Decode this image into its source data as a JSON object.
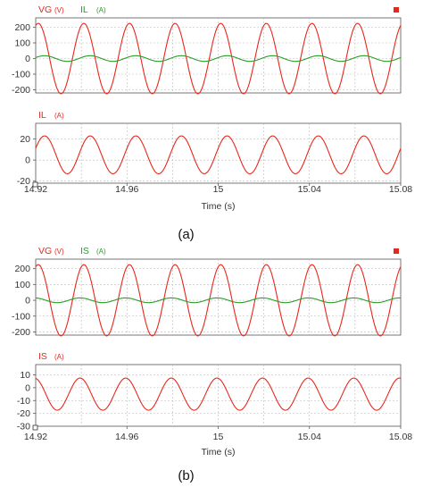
{
  "chart_data": [
    {
      "type": "line",
      "panel_caption": "(a)",
      "time_range": [
        14.92,
        15.08
      ],
      "x_ticks": [
        "14.92",
        "14.96",
        "15",
        "15.04",
        "15.08"
      ],
      "xlabel": "Time (s)",
      "accent_color": "#e8271c",
      "subplots": [
        {
          "legend": [
            {
              "name": "VG",
              "unit": "(V)",
              "color": "#e8271c"
            },
            {
              "name": "IL",
              "unit": "(A)",
              "color": "#2a9d2a"
            }
          ],
          "ylim": [
            -220,
            260
          ],
          "y_ticks": [
            200,
            100,
            0,
            -100,
            -200
          ],
          "series": [
            {
              "name": "VG",
              "color": "#e8271c",
              "waveform": "sine",
              "amplitude": 225,
              "offset": 0,
              "frequency_hz": 50,
              "phase_deg": 70
            },
            {
              "name": "IL",
              "color": "#2a9d2a",
              "waveform": "sine",
              "amplitude": 18,
              "offset": 0,
              "frequency_hz": 50,
              "phase_deg": 20
            }
          ]
        },
        {
          "legend": [
            {
              "name": "IL",
              "unit": "(A)",
              "color": "#e8271c"
            }
          ],
          "ylim": [
            -22,
            35
          ],
          "y_ticks": [
            20,
            0,
            -20
          ],
          "series": [
            {
              "name": "IL",
              "color": "#e8271c",
              "waveform": "sine",
              "amplitude": 18,
              "offset": 5,
              "frequency_hz": 50,
              "phase_deg": 20
            }
          ]
        }
      ]
    },
    {
      "type": "line",
      "panel_caption": "(b)",
      "time_range": [
        14.92,
        15.08
      ],
      "x_ticks": [
        "14.92",
        "14.96",
        "15",
        "15.04",
        "15.08"
      ],
      "xlabel": "Time (s)",
      "accent_color": "#e8271c",
      "subplots": [
        {
          "legend": [
            {
              "name": "VG",
              "unit": "(V)",
              "color": "#e8271c"
            },
            {
              "name": "IS",
              "unit": "(A)",
              "color": "#2a9d2a"
            }
          ],
          "ylim": [
            -220,
            260
          ],
          "y_ticks": [
            200,
            100,
            0,
            -100,
            -200
          ],
          "series": [
            {
              "name": "VG",
              "color": "#e8271c",
              "waveform": "sine",
              "amplitude": 225,
              "offset": 0,
              "frequency_hz": 50,
              "phase_deg": 70
            },
            {
              "name": "IS",
              "color": "#2a9d2a",
              "waveform": "sine",
              "amplitude": 15,
              "offset": 0,
              "frequency_hz": 50,
              "phase_deg": 100
            }
          ]
        },
        {
          "legend": [
            {
              "name": "IS",
              "unit": "(A)",
              "color": "#e8271c"
            }
          ],
          "ylim": [
            -30,
            18
          ],
          "y_ticks": [
            10,
            0,
            -10,
            -20,
            -30
          ],
          "series": [
            {
              "name": "IS",
              "color": "#e8271c",
              "waveform": "sine",
              "amplitude": 12.5,
              "offset": -5,
              "frequency_hz": 50,
              "phase_deg": 100
            }
          ]
        }
      ]
    }
  ]
}
